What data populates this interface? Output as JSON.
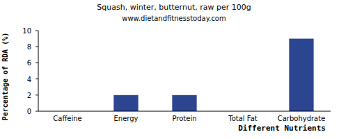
{
  "chart_data": {
    "type": "bar",
    "title": "Squash, winter, butternut, raw per 100g",
    "subtitle": "www.dietandfitnesstoday.com",
    "x_label": "Different Nutrients",
    "y_label": "Percentage of RDA (%)",
    "categories": [
      "Caffeine",
      "Energy",
      "Protein",
      "Total Fat",
      "Carbohydrate"
    ],
    "values": [
      0,
      2,
      2,
      0,
      9
    ],
    "color": "#2b4590",
    "ylim": [
      0,
      10
    ],
    "yticks": [
      0,
      2,
      4,
      6,
      8,
      10
    ],
    "grid": false
  }
}
